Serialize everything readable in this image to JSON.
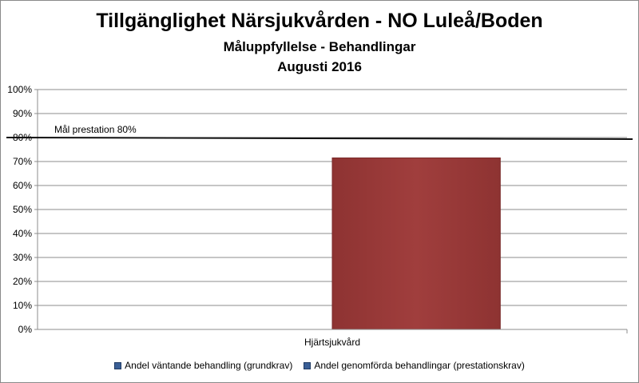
{
  "chart_data": {
    "type": "bar",
    "title": "Tillgänglighet Närsjukvården - NO Luleå/Boden",
    "subtitle": "Måluppfyllelse - Behandlingar",
    "period": "Augusti 2016",
    "categories": [
      "Hjärtsjukvård"
    ],
    "series": [
      {
        "name": "Andel väntande behandling (grundkrav)",
        "values": [
          null
        ],
        "color": "#3a5f96"
      },
      {
        "name": "Andel genomförda behandlingar (prestationskrav)",
        "values": [
          71.5
        ],
        "color": "#9b3b3a"
      }
    ],
    "ylim": [
      0,
      100
    ],
    "yticks": [
      "0%",
      "10%",
      "20%",
      "30%",
      "40%",
      "50%",
      "60%",
      "70%",
      "80%",
      "90%",
      "100%"
    ],
    "grid": true,
    "legend": "bottom",
    "target": {
      "label": "Mål prestation  80%",
      "value": 80
    }
  }
}
